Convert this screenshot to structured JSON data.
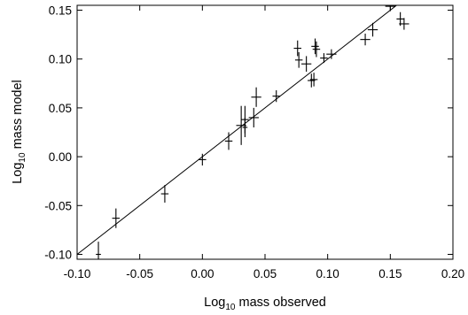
{
  "chart_data": {
    "type": "scatter",
    "xlabel": {
      "prefix": "Log",
      "sub": "10",
      "suffix": " mass observed"
    },
    "ylabel": {
      "prefix": "Log",
      "sub": "10",
      "suffix": " mass model"
    },
    "xlim": [
      -0.1,
      0.2
    ],
    "ylim": [
      -0.105,
      0.155
    ],
    "x_ticks": [
      -0.1,
      -0.05,
      0.0,
      0.05,
      0.1,
      0.15,
      0.2
    ],
    "x_tick_labels": [
      "-0.10",
      "-0.05",
      "0.00",
      "0.05",
      "0.10",
      "0.15",
      "0.20"
    ],
    "y_ticks": [
      -0.1,
      -0.05,
      0.0,
      0.05,
      0.1,
      0.15
    ],
    "y_tick_labels": [
      "-0.10",
      "-0.05",
      "0.00",
      "0.05",
      "0.10",
      "0.15"
    ],
    "grid": false,
    "reference_line": {
      "type": "identity",
      "description": "y = x"
    },
    "points": [
      {
        "x": -0.083,
        "y": -0.1,
        "xerr": 0.002,
        "yerr": 0.013
      },
      {
        "x": -0.069,
        "y": -0.063,
        "xerr": 0.003,
        "yerr": 0.01
      },
      {
        "x": -0.03,
        "y": -0.038,
        "xerr": 0.003,
        "yerr": 0.009
      },
      {
        "x": 0.0,
        "y": -0.003,
        "xerr": 0.003,
        "yerr": 0.006
      },
      {
        "x": 0.021,
        "y": 0.016,
        "xerr": 0.003,
        "yerr": 0.009
      },
      {
        "x": 0.031,
        "y": 0.032,
        "xerr": 0.004,
        "yerr": 0.02
      },
      {
        "x": 0.034,
        "y": 0.038,
        "xerr": 0.003,
        "yerr": 0.014
      },
      {
        "x": 0.034,
        "y": 0.03,
        "xerr": 0.002,
        "yerr": 0.01
      },
      {
        "x": 0.041,
        "y": 0.04,
        "xerr": 0.004,
        "yerr": 0.01
      },
      {
        "x": 0.043,
        "y": 0.061,
        "xerr": 0.004,
        "yerr": 0.01
      },
      {
        "x": 0.059,
        "y": 0.062,
        "xerr": 0.003,
        "yerr": 0.006
      },
      {
        "x": 0.076,
        "y": 0.111,
        "xerr": 0.003,
        "yerr": 0.008
      },
      {
        "x": 0.077,
        "y": 0.099,
        "xerr": 0.003,
        "yerr": 0.008
      },
      {
        "x": 0.083,
        "y": 0.095,
        "xerr": 0.004,
        "yerr": 0.008
      },
      {
        "x": 0.087,
        "y": 0.078,
        "xerr": 0.003,
        "yerr": 0.007
      },
      {
        "x": 0.089,
        "y": 0.079,
        "xerr": 0.003,
        "yerr": 0.007
      },
      {
        "x": 0.09,
        "y": 0.113,
        "xerr": 0.003,
        "yerr": 0.008
      },
      {
        "x": 0.091,
        "y": 0.11,
        "xerr": 0.003,
        "yerr": 0.008
      },
      {
        "x": 0.097,
        "y": 0.101,
        "xerr": 0.003,
        "yerr": 0.005
      },
      {
        "x": 0.103,
        "y": 0.105,
        "xerr": 0.004,
        "yerr": 0.005
      },
      {
        "x": 0.13,
        "y": 0.12,
        "xerr": 0.004,
        "yerr": 0.006
      },
      {
        "x": 0.136,
        "y": 0.13,
        "xerr": 0.004,
        "yerr": 0.007
      },
      {
        "x": 0.15,
        "y": 0.154,
        "xerr": 0.004,
        "yerr": 0.005
      },
      {
        "x": 0.158,
        "y": 0.141,
        "xerr": 0.003,
        "yerr": 0.007
      },
      {
        "x": 0.161,
        "y": 0.136,
        "xerr": 0.004,
        "yerr": 0.006
      }
    ]
  }
}
